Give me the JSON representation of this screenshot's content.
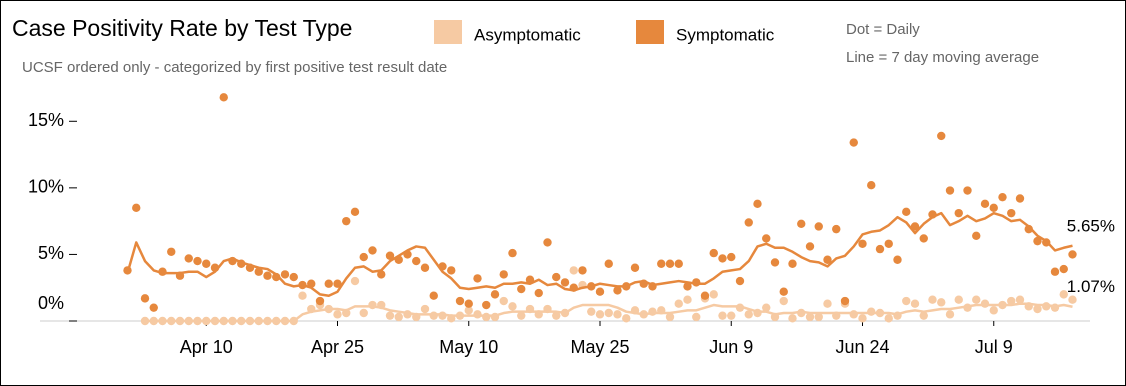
{
  "chart_data": {
    "type": "scatter-line",
    "title": "Case Positivity Rate by Test Type",
    "subtitle": "UCSF ordered only - categorized by first positive test result date",
    "notes": [
      "Dot = Daily",
      "Line = 7 day moving average"
    ],
    "annotations": [
      "5.65%",
      "1.07%"
    ],
    "x": [
      "Apr 1",
      "Apr 2",
      "Apr 3",
      "Apr 4",
      "Apr 5",
      "Apr 6",
      "Apr 7",
      "Apr 8",
      "Apr 9",
      "Apr 10",
      "Apr 11",
      "Apr 12",
      "Apr 13",
      "Apr 14",
      "Apr 15",
      "Apr 16",
      "Apr 17",
      "Apr 18",
      "Apr 19",
      "Apr 20",
      "Apr 21",
      "Apr 22",
      "Apr 23",
      "Apr 24",
      "Apr 25",
      "Apr 26",
      "Apr 27",
      "Apr 28",
      "Apr 29",
      "Apr 30",
      "May 1",
      "May 2",
      "May 3",
      "May 4",
      "May 5",
      "May 6",
      "May 7",
      "May 8",
      "May 9",
      "May 10",
      "May 11",
      "May 12",
      "May 13",
      "May 14",
      "May 15",
      "May 16",
      "May 17",
      "May 18",
      "May 19",
      "May 20",
      "May 21",
      "May 22",
      "May 23",
      "May 24",
      "May 25",
      "May 26",
      "May 27",
      "May 28",
      "May 29",
      "May 30",
      "May 31",
      "Jun 1",
      "Jun 2",
      "Jun 3",
      "Jun 4",
      "Jun 5",
      "Jun 6",
      "Jun 7",
      "Jun 8",
      "Jun 9",
      "Jun 10",
      "Jun 11",
      "Jun 12",
      "Jun 13",
      "Jun 14",
      "Jun 15",
      "Jun 16",
      "Jun 17",
      "Jun 18",
      "Jun 19",
      "Jun 20",
      "Jun 21",
      "Jun 22",
      "Jun 23",
      "Jun 24",
      "Jun 25",
      "Jun 26",
      "Jun 27",
      "Jun 28",
      "Jun 29",
      "Jun 30",
      "Jul 1",
      "Jul 2",
      "Jul 3",
      "Jul 4",
      "Jul 5",
      "Jul 6",
      "Jul 7",
      "Jul 8",
      "Jul 9",
      "Jul 10",
      "Jul 11",
      "Jul 12",
      "Jul 13",
      "Jul 14",
      "Jul 15",
      "Jul 16",
      "Jul 17",
      "Jul 18"
    ],
    "xlim": [
      "Mar 22",
      "Jul 20"
    ],
    "xticks": [
      "Apr 10",
      "Apr 25",
      "May 10",
      "May 25",
      "Jun 9",
      "Jun 24",
      "Jul 9"
    ],
    "ylim": [
      0,
      17.5
    ],
    "yticks": [
      {
        "value": 0,
        "label": "0%"
      },
      {
        "value": 5,
        "label": "5%"
      },
      {
        "value": 10,
        "label": "10%"
      },
      {
        "value": 15,
        "label": "15%"
      }
    ],
    "series": [
      {
        "name": "Asymptomatic",
        "color": "#f6caa3",
        "daily": [
          null,
          null,
          0,
          0,
          0,
          0,
          0,
          0,
          0,
          0,
          0,
          0,
          0,
          0,
          0,
          0,
          0,
          0,
          0,
          0,
          1.9,
          0.9,
          1.2,
          0.9,
          0.5,
          0.6,
          3.0,
          0.6,
          1.2,
          1.2,
          0.4,
          0.3,
          0.5,
          0.3,
          0.9,
          0.4,
          0.4,
          0.2,
          0.4,
          0.8,
          0.5,
          0.3,
          0.3,
          1.5,
          1.1,
          0.4,
          0.9,
          0.5,
          0.9,
          0.4,
          0.6,
          3.8,
          2.7,
          0.7,
          0.5,
          0.6,
          0.5,
          0.2,
          0.8,
          0.5,
          0.7,
          0.8,
          0.3,
          1.3,
          1.6,
          0.3,
          1.7,
          2.0,
          0.4,
          0.4,
          1.0,
          0.5,
          0.6,
          1.0,
          0.3,
          1.5,
          0.2,
          0.6,
          0.3,
          0.3,
          1.3,
          0.4,
          1.3,
          0.5,
          0.2,
          0.7,
          0.6,
          0.2,
          0.4,
          1.5,
          1.3,
          0.4,
          1.6,
          1.4,
          0.5,
          1.6,
          1.0,
          1.6,
          1.3,
          0.8,
          1.2,
          1.5,
          1.6,
          1.1,
          0.9,
          1.1,
          1.0,
          2.0,
          1.6
        ],
        "average": [
          null,
          null,
          0,
          0,
          0,
          0,
          0,
          0,
          0,
          0,
          0,
          0,
          0,
          0,
          0,
          0,
          0,
          0,
          0,
          0,
          0.5,
          0.7,
          0.8,
          0.9,
          0.9,
          0.8,
          1.1,
          1.1,
          1.1,
          1.0,
          0.8,
          0.7,
          0.6,
          0.5,
          0.5,
          0.5,
          0.5,
          0.4,
          0.4,
          0.4,
          0.4,
          0.4,
          0.4,
          0.6,
          0.7,
          0.7,
          0.7,
          0.7,
          0.7,
          0.7,
          0.6,
          1.0,
          1.2,
          1.2,
          1.2,
          1.2,
          1.0,
          0.7,
          0.6,
          0.5,
          0.6,
          0.6,
          0.6,
          0.7,
          0.8,
          0.8,
          1.0,
          1.2,
          1.1,
          1.1,
          1.1,
          0.9,
          0.7,
          0.7,
          0.5,
          0.6,
          0.6,
          0.7,
          0.6,
          0.6,
          0.6,
          0.6,
          0.6,
          0.6,
          0.6,
          0.6,
          0.6,
          0.6,
          0.5,
          0.7,
          0.8,
          0.7,
          0.8,
          0.9,
          0.9,
          1.0,
          1.1,
          1.2,
          1.2,
          1.2,
          1.2,
          1.2,
          1.3,
          1.3,
          1.2,
          1.2,
          1.1,
          1.2,
          1.07
        ]
      },
      {
        "name": "Symptomatic",
        "color": "#e6883d",
        "daily": [
          3.8,
          8.5,
          1.7,
          1.0,
          3.7,
          5.2,
          3.4,
          4.7,
          4.5,
          4.3,
          4.0,
          16.8,
          4.5,
          4.3,
          4.0,
          3.7,
          3.4,
          3.3,
          3.5,
          3.3,
          2.7,
          2.8,
          1.5,
          2.8,
          2.8,
          7.5,
          8.2,
          4.8,
          5.3,
          3.5,
          4.9,
          4.6,
          5.0,
          4.5,
          4.0,
          1.9,
          4.1,
          3.8,
          1.5,
          1.3,
          3.2,
          1.2,
          2.0,
          3.5,
          5.1,
          2.4,
          3.1,
          2.1,
          5.9,
          3.3,
          2.9,
          2.5,
          3.8,
          2.6,
          2.2,
          4.3,
          2.3,
          2.6,
          4.0,
          2.8,
          2.6,
          4.3,
          4.3,
          4.3,
          2.6,
          2.9,
          1.9,
          5.1,
          4.7,
          4.8,
          3.0,
          7.4,
          8.8,
          6.2,
          4.4,
          2.2,
          4.3,
          7.3,
          5.6,
          7.1,
          4.6,
          6.9,
          1.5,
          13.4,
          5.8,
          10.2,
          5.4,
          5.8,
          4.6,
          8.2,
          7.1,
          6.2,
          8.0,
          13.9,
          9.8,
          8.1,
          9.8,
          6.4,
          8.8,
          8.5,
          9.3,
          8.1,
          9.2,
          6.9,
          6.0,
          5.9,
          3.7,
          3.9,
          5.0
        ],
        "average": [
          3.6,
          5.9,
          4.5,
          3.8,
          3.6,
          3.6,
          3.6,
          3.7,
          3.7,
          3.3,
          3.7,
          4.5,
          4.7,
          4.4,
          4.2,
          4.0,
          3.9,
          3.5,
          2.8,
          2.6,
          2.7,
          2.5,
          2.0,
          1.9,
          2.2,
          3.2,
          4.0,
          4.1,
          3.7,
          3.8,
          4.5,
          4.9,
          5.3,
          5.6,
          5.5,
          4.6,
          3.7,
          3.2,
          2.5,
          2.4,
          2.5,
          2.6,
          2.5,
          2.8,
          2.8,
          2.9,
          2.8,
          3.1,
          2.7,
          2.8,
          2.4,
          2.3,
          2.5,
          2.6,
          2.8,
          2.7,
          2.6,
          2.6,
          2.9,
          3.0,
          2.7,
          2.8,
          2.9,
          3.0,
          2.9,
          2.8,
          2.8,
          3.2,
          3.7,
          3.8,
          3.9,
          4.5,
          5.6,
          5.8,
          5.5,
          5.5,
          5.2,
          4.8,
          4.5,
          4.4,
          4.1,
          4.7,
          4.9,
          5.6,
          6.5,
          6.7,
          6.8,
          7.2,
          7.8,
          7.4,
          6.6,
          7.3,
          7.8,
          8.1,
          7.2,
          7.5,
          7.9,
          7.5,
          7.7,
          8.1,
          7.9,
          7.5,
          7.6,
          7.1,
          6.4,
          6.0,
          5.3,
          5.5,
          5.65
        ]
      }
    ]
  }
}
